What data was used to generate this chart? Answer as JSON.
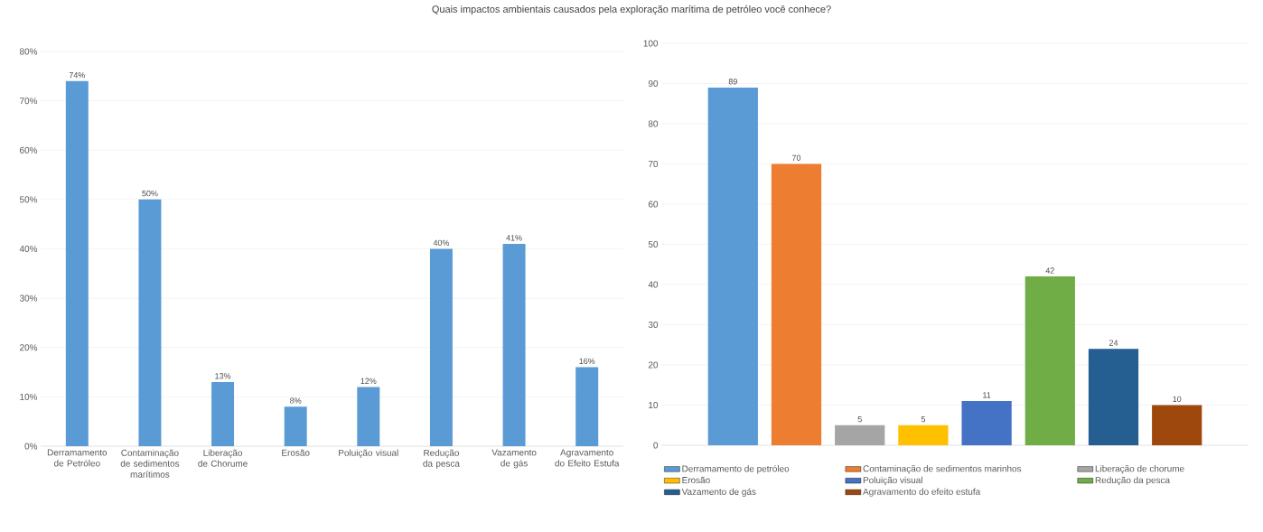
{
  "chart_data": [
    {
      "type": "bar",
      "title": "Quais impactos ambientais causados pela exploração marítima de petróleo você conhece?",
      "categories": [
        "Derramamento de Petróleo",
        "Contaminação de sedimentos marítimos",
        "Liberação de Chorume",
        "Erosão",
        "Poluição visual",
        "Redução da pesca",
        "Vazamento de gás",
        "Agravamento do Efeito Estufa"
      ],
      "values": [
        74,
        50,
        13,
        8,
        12,
        40,
        41,
        16
      ],
      "value_labels": [
        "74%",
        "50%",
        "13%",
        "8%",
        "12%",
        "40%",
        "41%",
        "16%"
      ],
      "color": "#5b9bd5",
      "ylim": [
        0,
        80
      ],
      "yticks": [
        {
          "value": 0,
          "label": "0%"
        },
        {
          "value": 10,
          "label": "10%"
        },
        {
          "value": 20,
          "label": "20%"
        },
        {
          "value": 30,
          "label": "30%"
        },
        {
          "value": 40,
          "label": "40%"
        },
        {
          "value": 50,
          "label": "50%"
        },
        {
          "value": 60,
          "label": "60%"
        },
        {
          "value": 70,
          "label": "70%"
        },
        {
          "value": 80,
          "label": "80%"
        }
      ],
      "grid": "y"
    },
    {
      "type": "bar",
      "categories": [
        null
      ],
      "series": [
        {
          "name": "Derramamento de petróleo",
          "color": "#5b9bd5",
          "values": [
            89
          ]
        },
        {
          "name": "Contaminação de sedimentos marinhos",
          "color": "#ed7d31",
          "values": [
            70
          ]
        },
        {
          "name": "Liberação de chorume",
          "color": "#a5a5a5",
          "values": [
            5
          ]
        },
        {
          "name": "Erosão",
          "color": "#ffc000",
          "values": [
            5
          ]
        },
        {
          "name": "Poluição visual",
          "color": "#4472c4",
          "values": [
            11
          ]
        },
        {
          "name": "Redução da pesca",
          "color": "#70ad47",
          "values": [
            42
          ]
        },
        {
          "name": "Vazamento de gás",
          "color": "#255e91",
          "values": [
            24
          ]
        },
        {
          "name": "Agravamento do efeito estufa",
          "color": "#9e480e",
          "values": [
            10
          ]
        }
      ],
      "data_labels": true,
      "ylim": [
        0,
        100
      ],
      "yticks": [
        0,
        10,
        20,
        30,
        40,
        50,
        60,
        70,
        80,
        90,
        100
      ],
      "grid": "y",
      "legend": "bottom",
      "tick_labels": "y"
    }
  ]
}
